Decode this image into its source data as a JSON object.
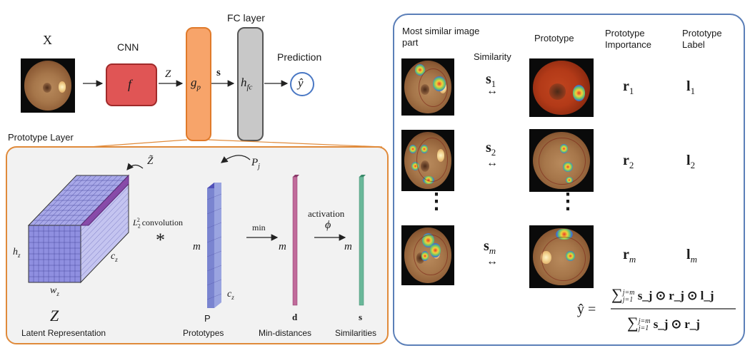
{
  "top": {
    "x_label": "X",
    "cnn_label": "CNN",
    "f_label": "f",
    "z_label": "Z",
    "gp_label": "g",
    "gp_sub": "p",
    "fc_title": "FC layer",
    "s_label": "s",
    "hfc_label": "h",
    "hfc_sub": "fc",
    "prediction_label": "Prediction",
    "yhat": "ŷ"
  },
  "proto_layer": {
    "title": "Prototype Layer",
    "ztilde": "Z̃",
    "pj": "P",
    "pj_sub": "j",
    "l2conv": "L",
    "l2conv_sub": "2",
    "l2conv_sup": "2",
    "l2conv_rest": "convolution",
    "star": "*",
    "hz": "h",
    "hz_sub": "z",
    "cz": "c",
    "cz_sub": "z",
    "wz": "w",
    "wz_sub": "z",
    "m1": "m",
    "cz2": "c",
    "cz2_sub": "z",
    "min_label": "min",
    "m2": "m",
    "activation_label": "activation",
    "phi": "ϕ",
    "m3": "m",
    "Z_big": "Z",
    "latent_label": "Latent Representation",
    "P_label": "P",
    "prototypes_label": "Prototypes",
    "d_label": "d",
    "mindist_label": "Min-distances",
    "s_label": "s",
    "similarities_label": "Similarities"
  },
  "right": {
    "col_most_similar": "Most similar image part",
    "col_similarity": "Similarity",
    "col_prototype": "Prototype",
    "col_importance": "Prototype Importance",
    "col_label": "Prototype Label",
    "rows": [
      {
        "s": "s",
        "s_sub": "1",
        "r": "r",
        "r_sub": "1",
        "l": "l",
        "l_sub": "1",
        "arrow": "↔"
      },
      {
        "s": "s",
        "s_sub": "2",
        "r": "r",
        "r_sub": "2",
        "l": "l",
        "l_sub": "2",
        "arrow": "↔"
      },
      {
        "s": "s",
        "s_sub": "m",
        "r": "r",
        "r_sub": "m",
        "l": "l",
        "l_sub": "m",
        "arrow": "↔"
      }
    ],
    "dots": "⋮",
    "formula": {
      "lhs": "ŷ =",
      "num_sum": "∑",
      "num_sup": "j=m",
      "num_sub": "j=1",
      "num_body": "s_j ⊙ r_j ⊙ l_j",
      "den_sum": "∑",
      "den_sup": "j=m",
      "den_sub": "j=1",
      "den_body": "s_j ⊙ r_j"
    }
  },
  "colors": {
    "cnn_fill": "#e05555",
    "gp_fill": "#f7a46a",
    "fc_fill": "#c8c8c8",
    "pred_circle": "#4a78c4",
    "proto_border": "#e08a3a",
    "right_border": "#5b7fb8",
    "cube_top": "#a8a8e8",
    "cube_front": "#8f8fe0",
    "cube_side": "#bdbdf0",
    "cube_slice": "#8a4aa8",
    "prototypes": "#7a84d0",
    "mindist": "#c06a9a",
    "similarities": "#6ab89a"
  }
}
